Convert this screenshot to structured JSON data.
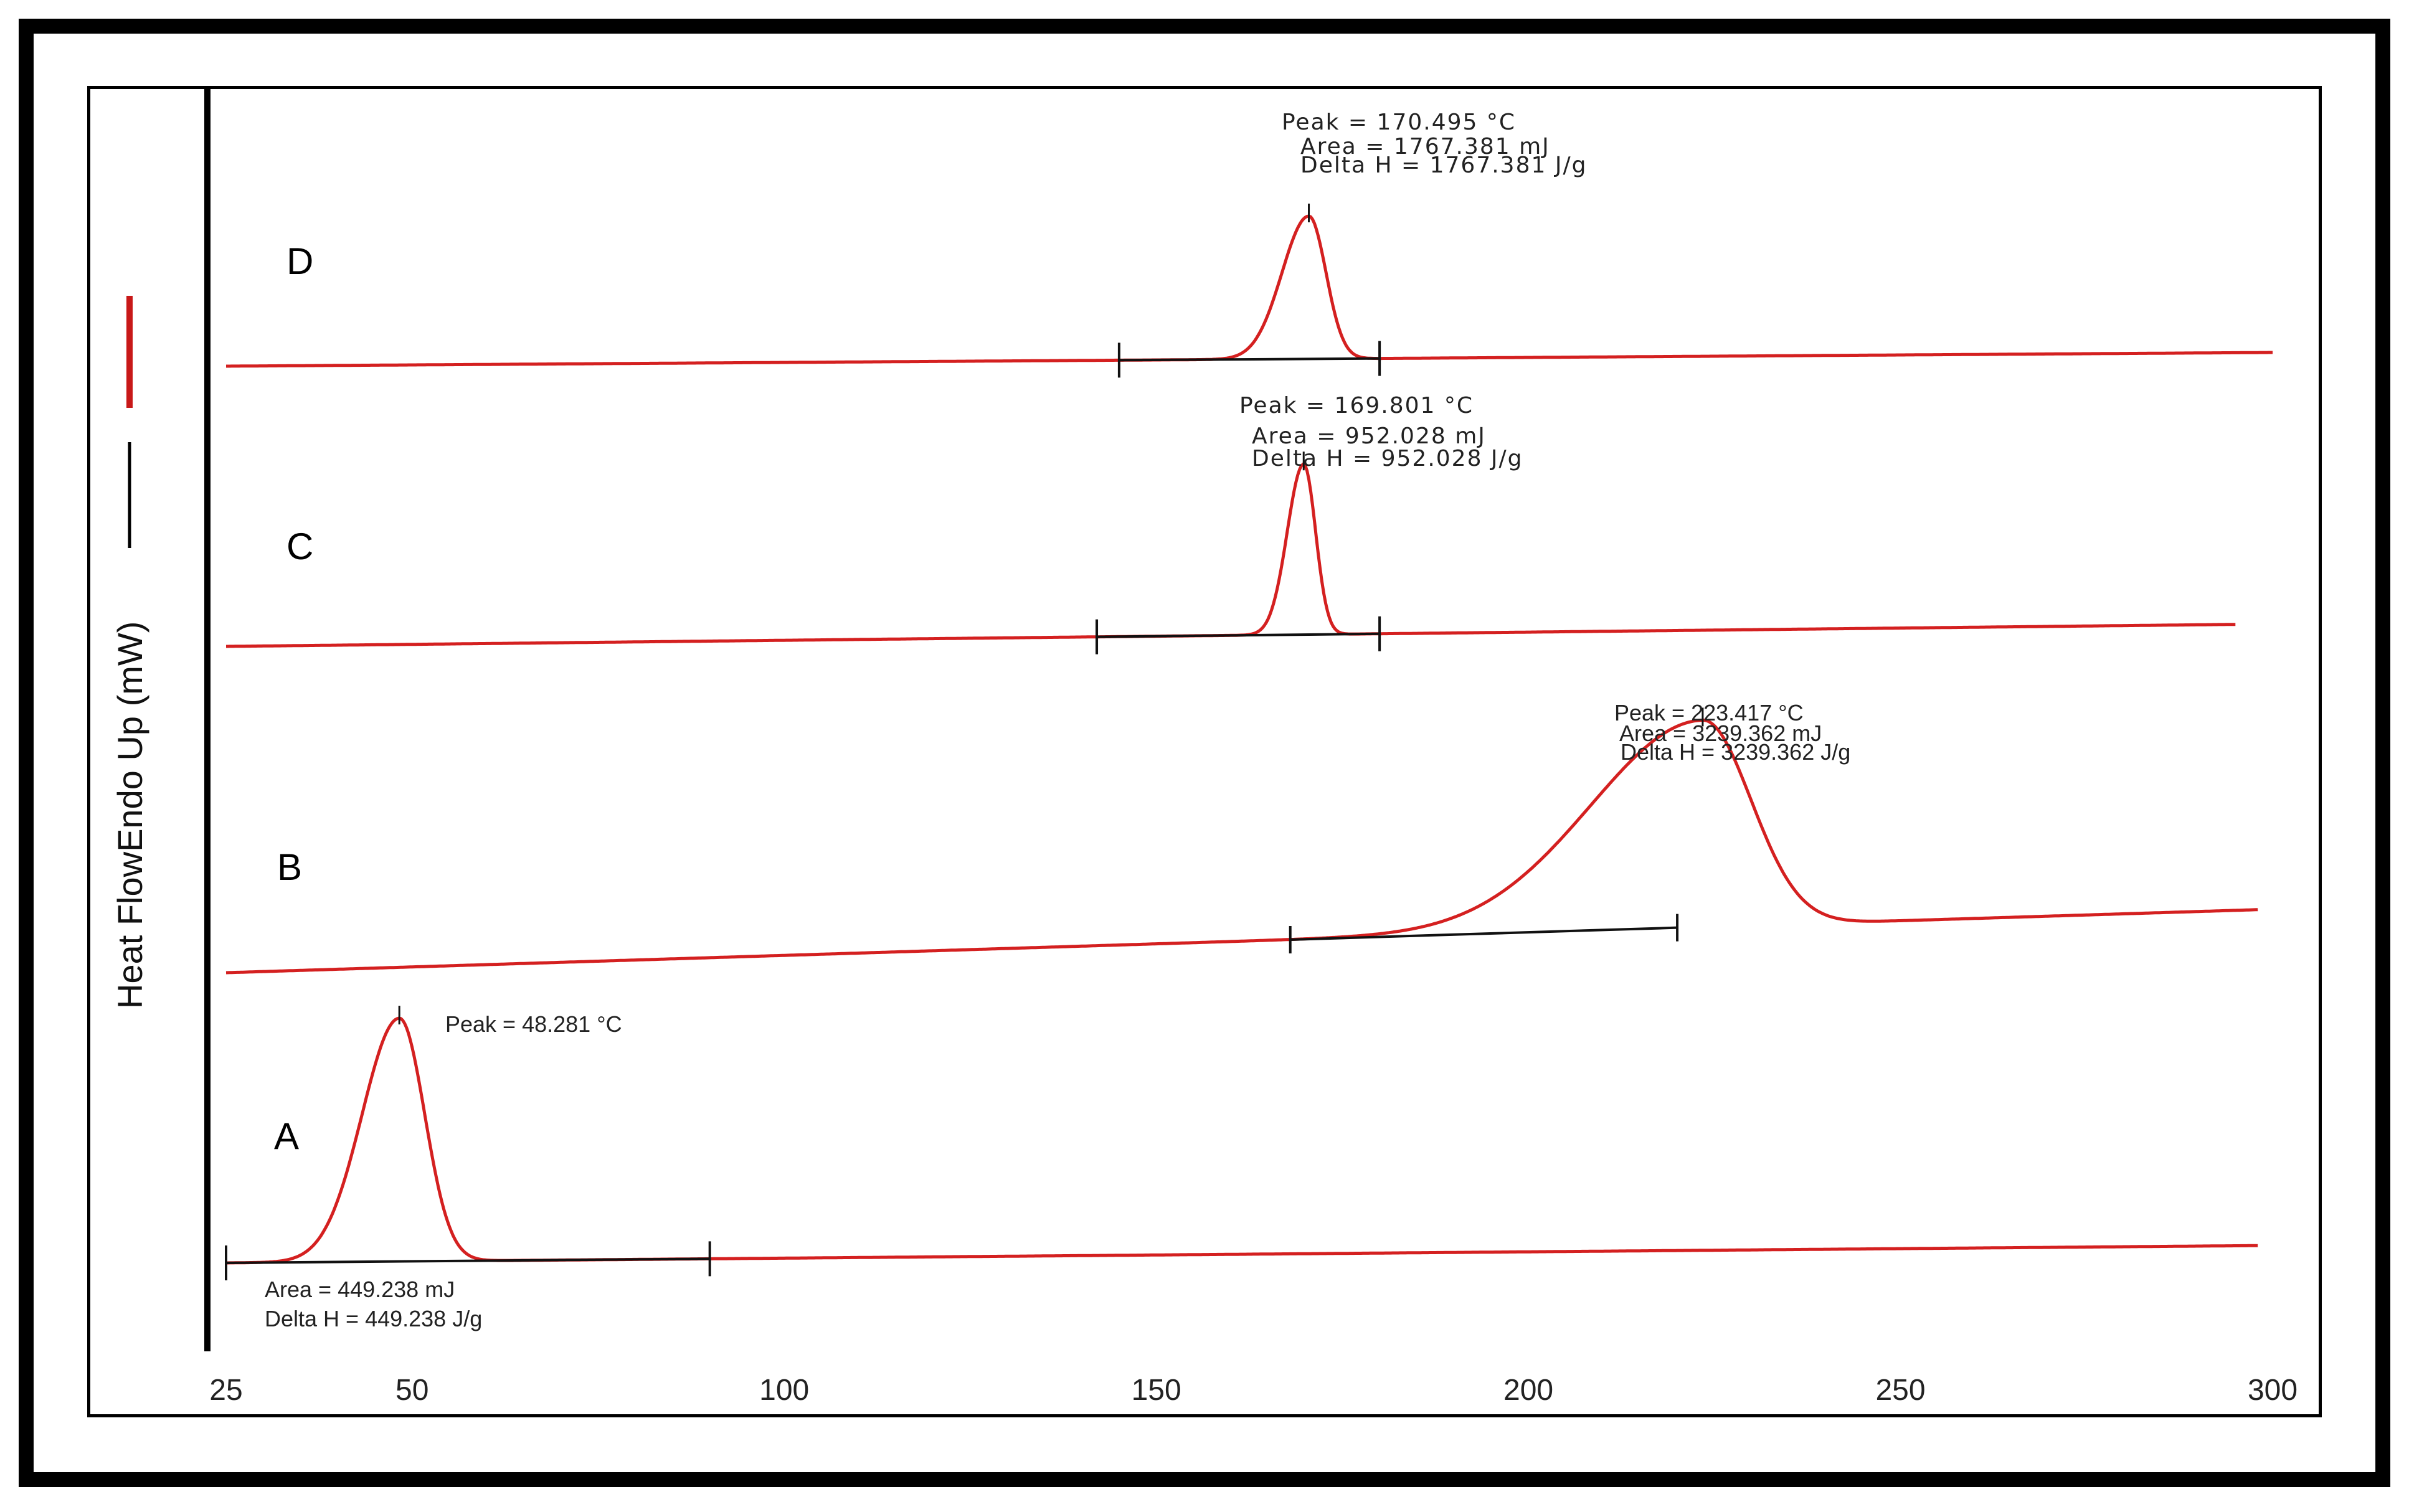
{
  "chart_data": {
    "type": "line",
    "ylabel": "Heat FlowEndo Up (mW)",
    "xlabel": "",
    "xlim": [
      25,
      300
    ],
    "x_ticks": [
      {
        "value": 25,
        "label": "25"
      },
      {
        "value": 50,
        "label": "50"
      },
      {
        "value": 100,
        "label": "100"
      },
      {
        "value": 150,
        "label": "150"
      },
      {
        "value": 200,
        "label": "200"
      },
      {
        "value": 250,
        "label": "250"
      },
      {
        "value": 300,
        "label": "300"
      }
    ],
    "grid": false,
    "legend": "left",
    "line_color": "#d42020",
    "baseline_color": "#111111",
    "series": [
      {
        "name": "D",
        "x_range": [
          25,
          300
        ],
        "peak": {
          "x": 170.495,
          "height": 0.62,
          "width_left": 3.6,
          "width_right": 2.3
        },
        "integration_limits": [
          145,
          180
        ],
        "annotations": [
          {
            "key": "peak",
            "text": "Peak = 170.495 °C"
          },
          {
            "key": "area",
            "text": "Area = 1767.381 mJ"
          },
          {
            "key": "delta_h",
            "text": "Delta H = 1767.381 J/g"
          }
        ]
      },
      {
        "name": "C",
        "x_range": [
          25,
          295
        ],
        "peak": {
          "x": 169.801,
          "height": 0.74,
          "width_left": 2.2,
          "width_right": 1.6
        },
        "integration_limits": [
          142,
          180
        ],
        "annotations": [
          {
            "key": "peak",
            "text": "Peak = 169.801 °C"
          },
          {
            "key": "area",
            "text": "Area = 952.028 mJ"
          },
          {
            "key": "delta_h",
            "text": "Delta H = 952.028 J/g"
          }
        ]
      },
      {
        "name": "B",
        "x_range": [
          25,
          298
        ],
        "peak": {
          "x": 223.417,
          "height": 0.83,
          "width_left": 15,
          "width_right": 6.5
        },
        "integration_limits": [
          168,
          220
        ],
        "annotations": [
          {
            "key": "peak",
            "text": "Peak = 223.417 °C"
          },
          {
            "key": "area",
            "text": "Area = 3239.362 mJ"
          },
          {
            "key": "delta_h",
            "text": "Delta H = 3239.362 J/g"
          }
        ]
      },
      {
        "name": "A",
        "x_range": [
          25,
          298
        ],
        "peak": {
          "x": 48.281,
          "height": 0.93,
          "width_left": 5,
          "width_right": 3.4
        },
        "integration_limits": [
          25,
          90
        ],
        "annotations": [
          {
            "key": "peak",
            "text": "Peak = 48.281 °C"
          },
          {
            "key": "area",
            "text": "Area = 449.238 mJ"
          },
          {
            "key": "delta_h",
            "text": "Delta H = 449.238 J/g"
          }
        ]
      }
    ]
  }
}
